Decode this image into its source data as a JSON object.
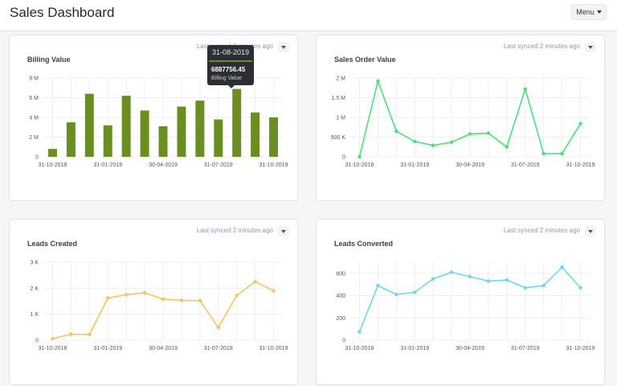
{
  "header": {
    "title": "Sales Dashboard",
    "menu_label": "Menu"
  },
  "cards": [
    {
      "title": "Billing Value",
      "sync_text": "Last synced 2 minutes ago",
      "color": "#6b8e23"
    },
    {
      "title": "Sales Order Value",
      "sync_text": "Last synced 2 minutes ago",
      "color": "#4ae07a"
    },
    {
      "title": "Leads Created",
      "sync_text": "Last synced 2 minutes ago",
      "color": "#f8c360"
    },
    {
      "title": "Leads Converted",
      "sync_text": "Last synced 2 minutes ago",
      "color": "#6fd6ee"
    }
  ],
  "tooltip": {
    "date": "31-08-2019",
    "value": "6887756.45",
    "label": "Billing Value"
  },
  "chart_data": [
    {
      "type": "bar",
      "title": "Billing Value",
      "x_tick_labels": [
        "31-10-2018",
        "31-01-2019",
        "30-04-2019",
        "31-07-2019",
        "31-10-2019"
      ],
      "y_tick_labels": [
        "0",
        "2 M",
        "4 M",
        "6 M",
        "8 M"
      ],
      "ylim": [
        0,
        8000000
      ],
      "values": [
        800000,
        3500000,
        6400000,
        3200000,
        6200000,
        4700000,
        3100000,
        5100000,
        5700000,
        3800000,
        6887756.45,
        4500000,
        4000000
      ],
      "grid": true
    },
    {
      "type": "line",
      "title": "Sales Order Value",
      "x_tick_labels": [
        "31-10-2018",
        "31-01-2019",
        "30-04-2019",
        "31-07-2019",
        "31-10-2019"
      ],
      "y_tick_labels": [
        "0",
        "500 K",
        "1 M",
        "1.5 M",
        "2 M"
      ],
      "ylim": [
        0,
        2000000
      ],
      "values": [
        0,
        1920000,
        650000,
        390000,
        290000,
        370000,
        580000,
        600000,
        250000,
        1720000,
        80000,
        80000,
        840000
      ],
      "grid": true
    },
    {
      "type": "line",
      "title": "Leads Created",
      "x_tick_labels": [
        "31-10-2018",
        "31-01-2019",
        "30-04-2019",
        "31-07-2019",
        "31-10-2019"
      ],
      "y_tick_labels": [
        "0",
        "1 K",
        "2 K",
        "3 K"
      ],
      "ylim": [
        0,
        3000
      ],
      "values": [
        60,
        230,
        220,
        1620,
        1750,
        1820,
        1580,
        1530,
        1520,
        490,
        1720,
        2250,
        1900
      ],
      "grid": true
    },
    {
      "type": "line",
      "title": "Leads Converted",
      "x_tick_labels": [
        "31-10-2018",
        "31-01-2019",
        "30-04-2019",
        "31-07-2019",
        "31-10-2019"
      ],
      "y_tick_labels": [
        "0",
        "200",
        "400",
        "600"
      ],
      "ylim": [
        0,
        700
      ],
      "values": [
        75,
        490,
        410,
        430,
        550,
        610,
        570,
        530,
        540,
        470,
        490,
        655,
        470
      ],
      "grid": true
    }
  ]
}
